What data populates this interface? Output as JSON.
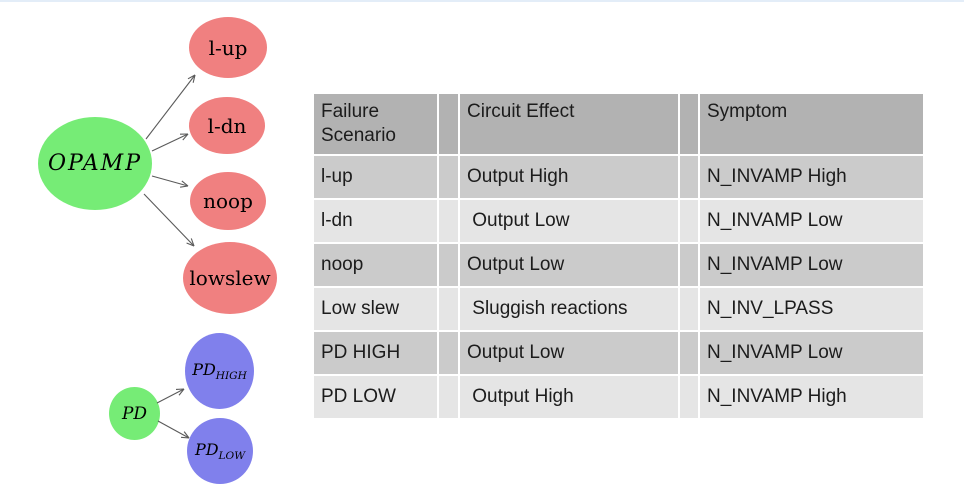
{
  "theme": {
    "top-strip": "#e3edf8",
    "node-green": "#76ec76",
    "node-red": "#f08080",
    "node-blue": "#8080ec",
    "node-text": "#000000",
    "arrow": "#5a5a5a",
    "header-bg": "#b2b2b2",
    "row-odd": "#cbcbcb",
    "row-even": "#e5e5e5",
    "table-text": "#1c1c1c"
  },
  "diagram": {
    "opamp": {
      "label": "OPAMP"
    },
    "failures": [
      {
        "label": "l-up"
      },
      {
        "label": "l-dn"
      },
      {
        "label": "noop"
      },
      {
        "label": "lowslew"
      }
    ],
    "pd": {
      "label": "PD"
    },
    "pd_states": [
      {
        "base": "PD",
        "sub": "HIGH"
      },
      {
        "base": "PD",
        "sub": "LOW"
      }
    ]
  },
  "table": {
    "columns": [
      "Failure Scenario",
      "Circuit Effect",
      "Symptom"
    ],
    "rows": [
      {
        "scenario": "l-up",
        "effect": "Output High",
        "symptom": "N_INVAMP High"
      },
      {
        "scenario": "l-dn",
        "effect": " Output Low",
        "symptom": "N_INVAMP Low"
      },
      {
        "scenario": "noop",
        "effect": "Output Low",
        "symptom": "N_INVAMP Low"
      },
      {
        "scenario": "Low slew",
        "effect": " Sluggish reactions",
        "symptom": "N_INV_LPASS"
      },
      {
        "scenario": "PD HIGH",
        "effect": "Output Low",
        "symptom": "N_INVAMP Low"
      },
      {
        "scenario": "PD LOW",
        "effect": " Output High",
        "symptom": "N_INVAMP High"
      }
    ]
  }
}
